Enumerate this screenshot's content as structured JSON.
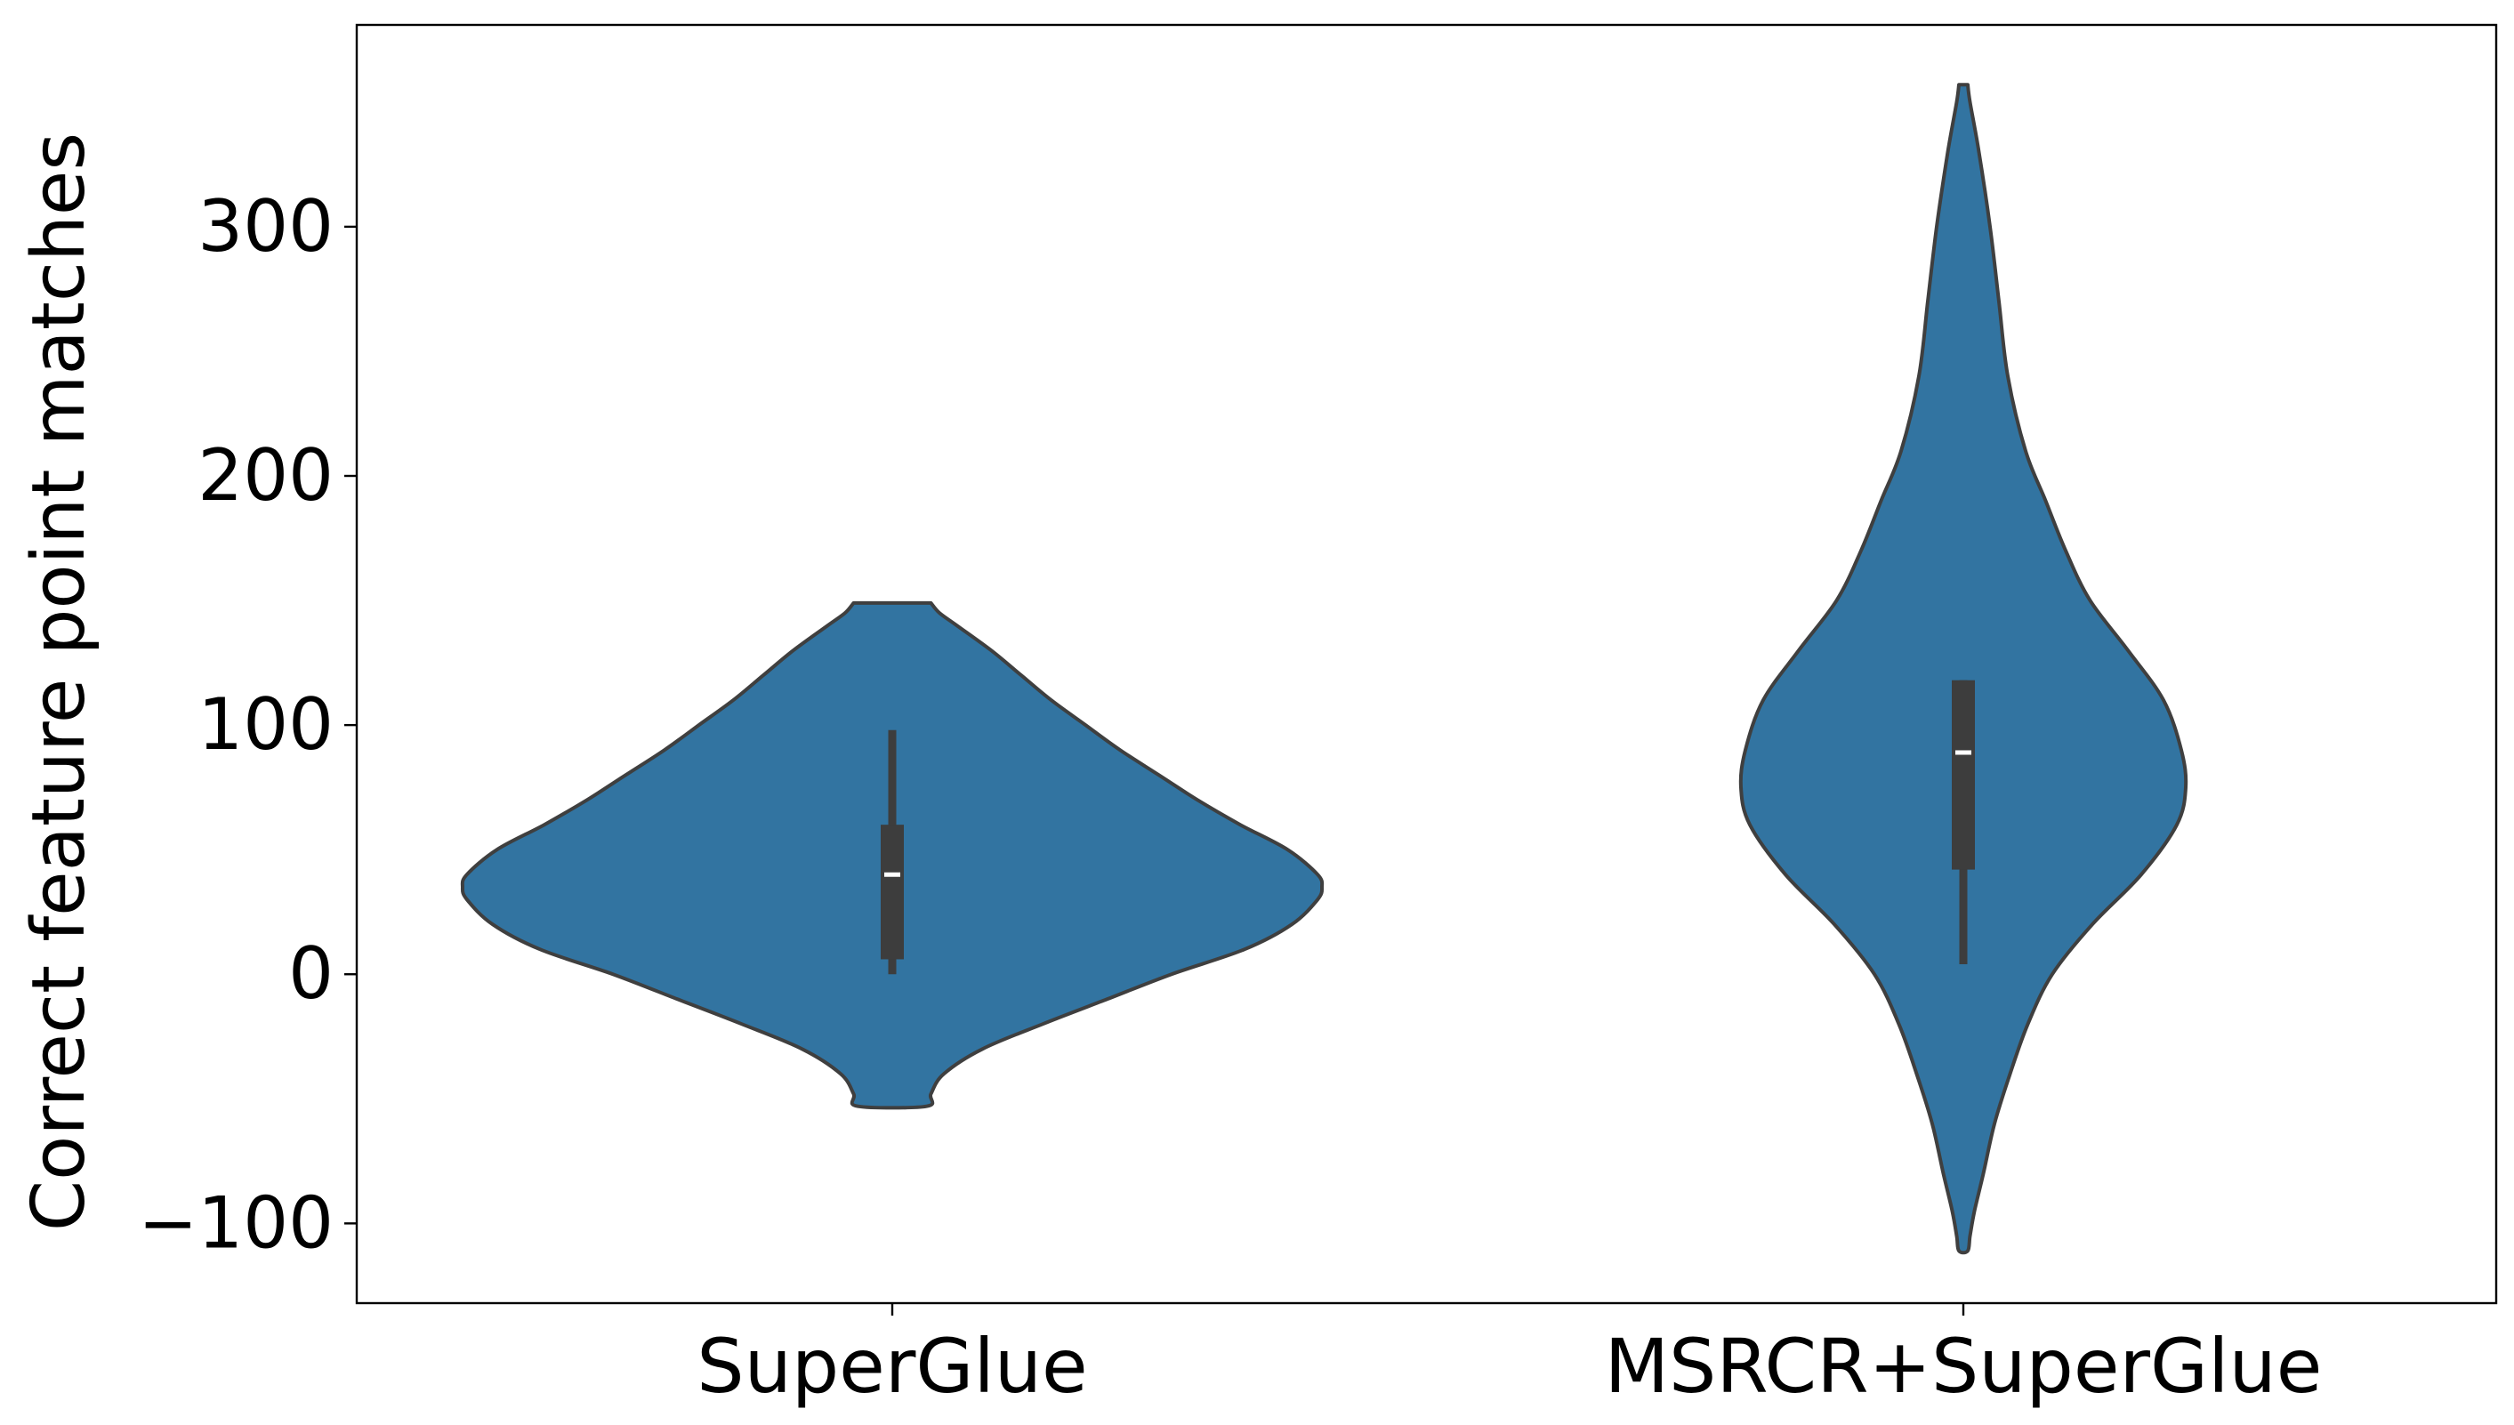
{
  "chart_data": {
    "type": "violin",
    "ylabel": "Correct feature point matches",
    "categories": [
      "SuperGlue",
      "MSRCR+SuperGlue"
    ],
    "ylim": [
      -132,
      381
    ],
    "y_ticks": [
      -100,
      0,
      100,
      200,
      300
    ],
    "y_tick_labels": [
      "−100",
      "0",
      "100",
      "200",
      "300"
    ],
    "grid": false,
    "legend": "none",
    "fill_color": "#3274a1",
    "edge_color": "#3f3f3f",
    "box_color": "#3d3d3d",
    "median_color": "#ffffff",
    "series": [
      {
        "category": "SuperGlue",
        "density_range": [
          -53,
          149
        ],
        "density_profile": [
          [
            149,
            0.09
          ],
          [
            145,
            0.11
          ],
          [
            140,
            0.15
          ],
          [
            130,
            0.23
          ],
          [
            120,
            0.3
          ],
          [
            110,
            0.37
          ],
          [
            100,
            0.45
          ],
          [
            90,
            0.53
          ],
          [
            80,
            0.62
          ],
          [
            70,
            0.71
          ],
          [
            60,
            0.81
          ],
          [
            50,
            0.92
          ],
          [
            40,
            0.99
          ],
          [
            35,
            1.0
          ],
          [
            30,
            0.99
          ],
          [
            20,
            0.93
          ],
          [
            10,
            0.82
          ],
          [
            0,
            0.65
          ],
          [
            -10,
            0.5
          ],
          [
            -20,
            0.35
          ],
          [
            -30,
            0.21
          ],
          [
            -40,
            0.12
          ],
          [
            -48,
            0.09
          ],
          [
            -53,
            0.08
          ]
        ],
        "whisker_low": 0,
        "q1": 6,
        "median": 40,
        "q3": 60,
        "whisker_high": 98
      },
      {
        "category": "MSRCR+SuperGlue",
        "density_range": [
          -111,
          357
        ],
        "density_profile": [
          [
            357,
            0.02
          ],
          [
            350,
            0.03
          ],
          [
            330,
            0.07
          ],
          [
            300,
            0.12
          ],
          [
            270,
            0.16
          ],
          [
            240,
            0.2
          ],
          [
            210,
            0.28
          ],
          [
            190,
            0.37
          ],
          [
            170,
            0.46
          ],
          [
            150,
            0.57
          ],
          [
            130,
            0.74
          ],
          [
            110,
            0.9
          ],
          [
            90,
            0.98
          ],
          [
            75,
            1.0
          ],
          [
            60,
            0.96
          ],
          [
            40,
            0.8
          ],
          [
            20,
            0.58
          ],
          [
            0,
            0.4
          ],
          [
            -20,
            0.29
          ],
          [
            -40,
            0.21
          ],
          [
            -60,
            0.14
          ],
          [
            -80,
            0.09
          ],
          [
            -95,
            0.05
          ],
          [
            -105,
            0.03
          ],
          [
            -111,
            0.02
          ]
        ],
        "whisker_low": 4,
        "q1": 42,
        "median": 89,
        "q3": 118,
        "whisker_high": 118
      }
    ]
  }
}
